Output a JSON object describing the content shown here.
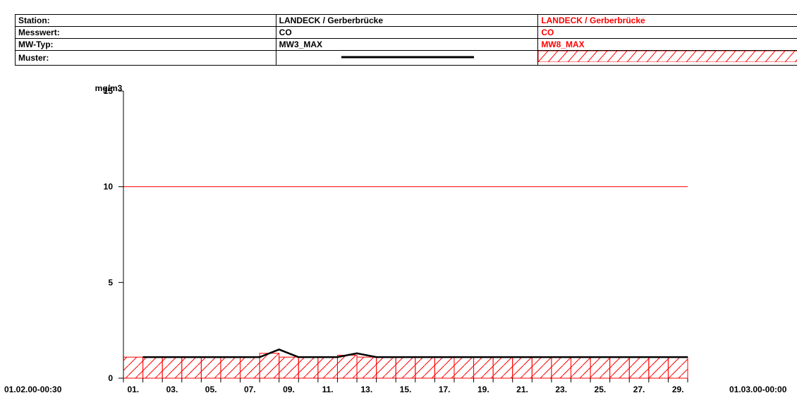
{
  "legend": {
    "rows": [
      {
        "label": "Station:",
        "s1": "LANDECK / Gerberbrücke",
        "s2": "LANDECK / Gerberbrücke"
      },
      {
        "label": "Messwert:",
        "s1": "CO",
        "s2": "CO"
      },
      {
        "label": "MW-Typ:",
        "s1": "MW3_MAX",
        "s2": "MW8_MAX"
      },
      {
        "label": "Muster:",
        "s1": "",
        "s2": ""
      }
    ]
  },
  "colors": {
    "series1": "#000000",
    "series2": "#ff0000",
    "limit": "#ff0000"
  },
  "chart_data": {
    "type": "line",
    "ylabel": "mg/m3",
    "ylim": [
      0,
      15
    ],
    "yticks": [
      0,
      5,
      10,
      15
    ],
    "xlim_days": [
      0,
      29
    ],
    "x_start_label": "01.02.00-00:30",
    "x_end_label": "01.03.00-00:00",
    "xtick_labels": [
      "01.",
      "03.",
      "05.",
      "07.",
      "09.",
      "11.",
      "13.",
      "15.",
      "17.",
      "19.",
      "21.",
      "23.",
      "25.",
      "27.",
      "29."
    ],
    "limit_line": 10,
    "series": [
      {
        "name": "MW3_MAX",
        "style": "line",
        "x": [
          1,
          2,
          3,
          4,
          5,
          6,
          7,
          8,
          9,
          10,
          11,
          12,
          13,
          14,
          15,
          16,
          17,
          18,
          19,
          20,
          21,
          22,
          23,
          24,
          25,
          26,
          27,
          28,
          29
        ],
        "values": [
          1.1,
          1.1,
          1.1,
          1.1,
          1.1,
          1.1,
          1.1,
          1.5,
          1.1,
          1.1,
          1.1,
          1.3,
          1.1,
          1.1,
          1.1,
          1.1,
          1.1,
          1.1,
          1.1,
          1.1,
          1.1,
          1.1,
          1.1,
          1.1,
          1.1,
          1.1,
          1.1,
          1.1,
          1.1
        ]
      },
      {
        "name": "MW8_MAX",
        "style": "hatched-bar",
        "x": [
          0,
          1,
          2,
          3,
          4,
          5,
          6,
          7,
          8,
          9,
          10,
          11,
          12,
          13,
          14,
          15,
          16,
          17,
          18,
          19,
          20,
          21,
          22,
          23,
          24,
          25,
          26,
          27,
          28
        ],
        "values": [
          1.1,
          1.1,
          1.1,
          1.1,
          1.1,
          1.1,
          1.1,
          1.3,
          1.1,
          1.1,
          1.1,
          1.2,
          1.1,
          1.1,
          1.1,
          1.1,
          1.1,
          1.1,
          1.1,
          1.1,
          1.1,
          1.1,
          1.1,
          1.1,
          1.1,
          1.1,
          1.1,
          1.1,
          1.1
        ]
      }
    ]
  }
}
